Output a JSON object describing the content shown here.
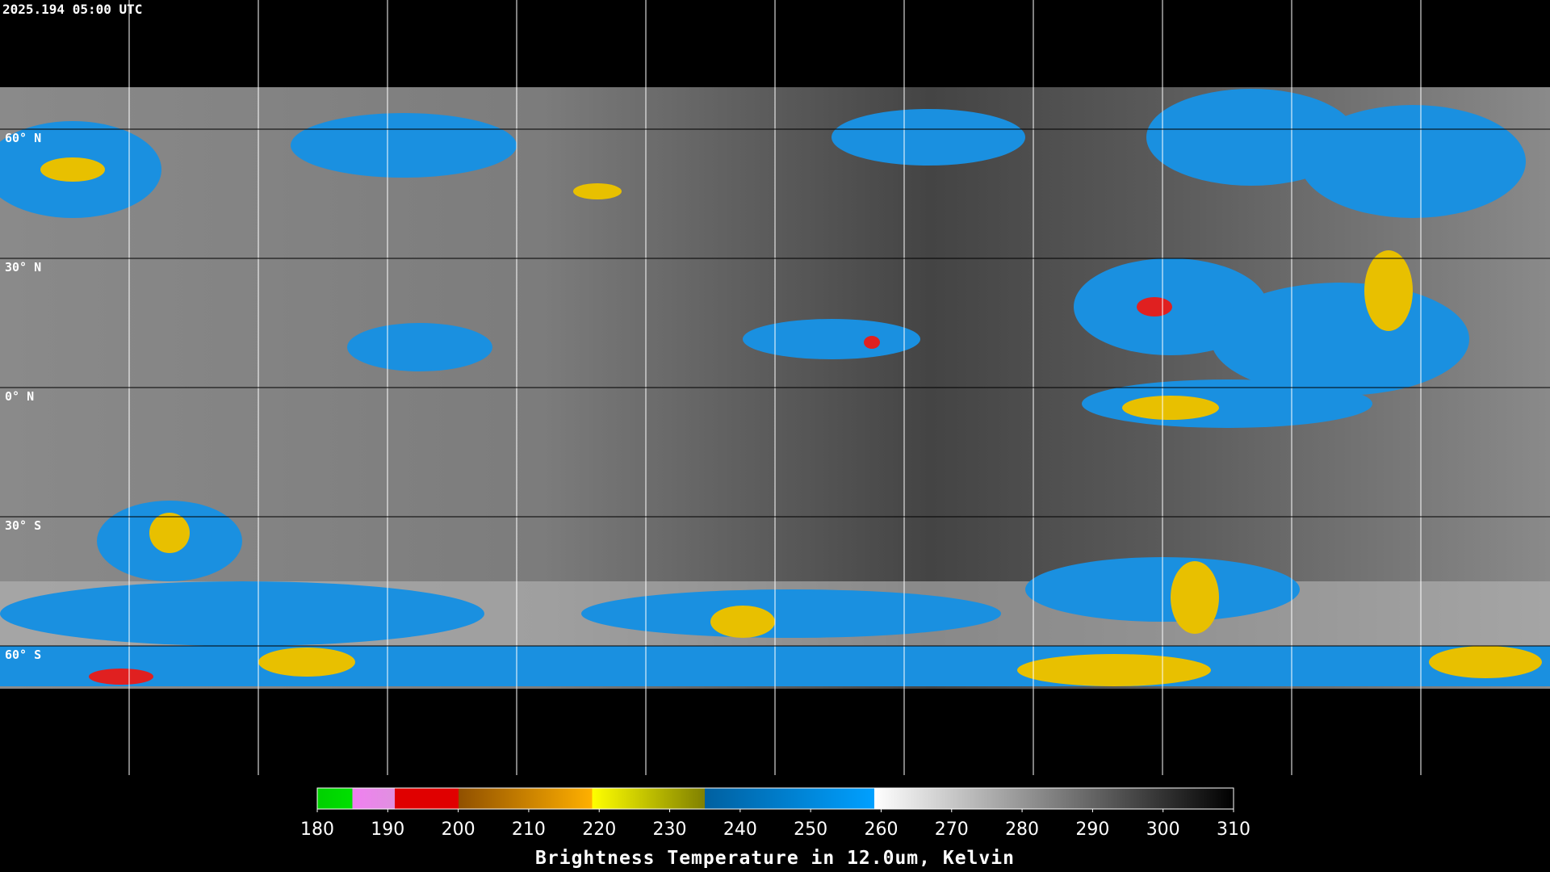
{
  "header": {
    "title": "2025.194 05:00 UTC"
  },
  "map": {
    "latitude_lines": [
      {
        "value": 60,
        "label": "60° N"
      },
      {
        "value": 30,
        "label": "30° N"
      },
      {
        "value": 0,
        "label": "0° N"
      },
      {
        "value": -30,
        "label": "30° S"
      },
      {
        "value": -60,
        "label": "60° S"
      }
    ]
  },
  "colorbar": {
    "ticks": [
      180,
      190,
      200,
      210,
      220,
      230,
      240,
      250,
      260,
      270,
      280,
      290,
      300,
      310
    ],
    "label": "Brightness Temperature in 12.0um, Kelvin"
  }
}
